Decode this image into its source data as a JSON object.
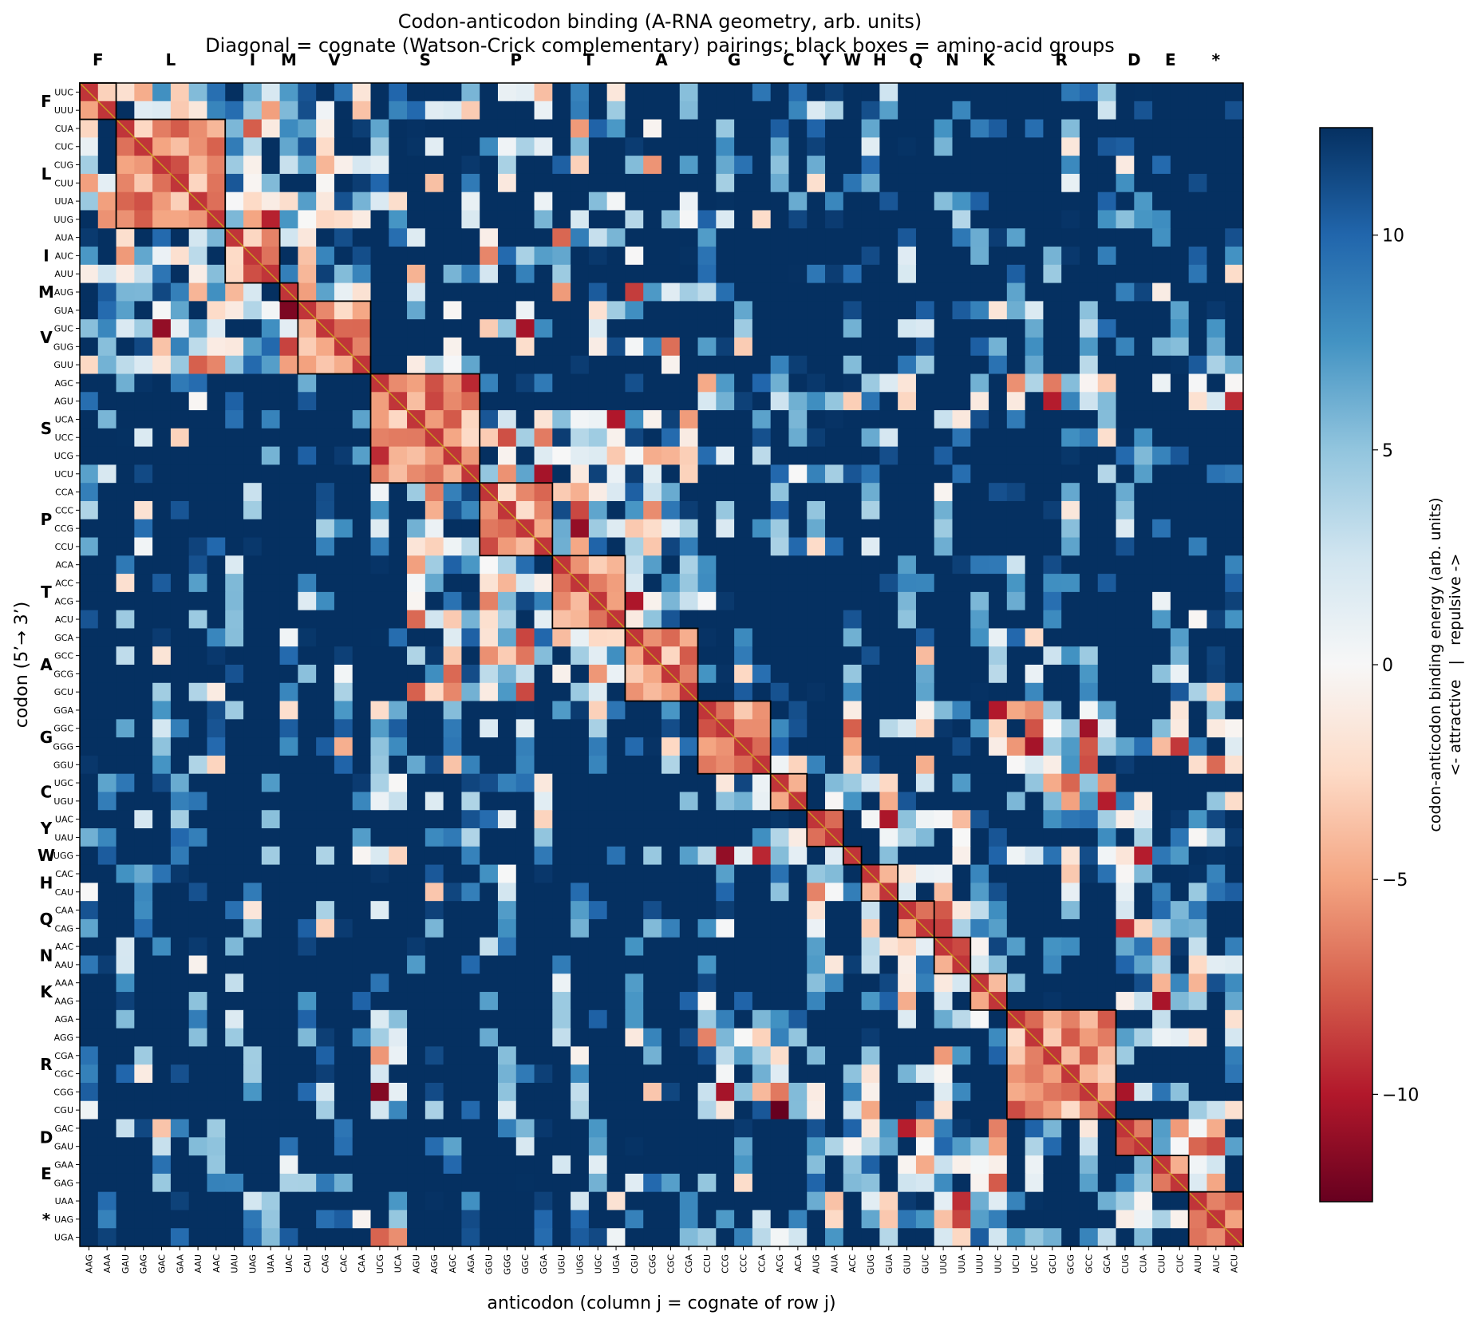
{
  "chart_data": {
    "type": "heatmap",
    "title": "Codon-anticodon binding (A-RNA geometry, arb. units)",
    "subtitle": "Diagonal = cognate (Watson-Crick complementary) pairings; black boxes = amino-acid groups",
    "xlabel": "anticodon (column j = cognate of row j)",
    "ylabel": "codon (5’→ 3’)",
    "colorbar_label_line1": "codon-anticodon binding energy (arb. units)",
    "colorbar_label_line2": "<- attractive   |   repulsive ->",
    "colormap": "RdBu",
    "value_range": [
      -12.5,
      12.5
    ],
    "colorbar_ticks": [
      -10,
      -5,
      0,
      5,
      10
    ],
    "colorbar_tick_labels": [
      "−10",
      "−5",
      "0",
      "5",
      "10"
    ],
    "codons": [
      "UUC",
      "UUU",
      "CUA",
      "CUC",
      "CUG",
      "CUU",
      "UUA",
      "UUG",
      "AUA",
      "AUC",
      "AUU",
      "AUG",
      "GUA",
      "GUC",
      "GUG",
      "GUU",
      "AGC",
      "AGU",
      "UCA",
      "UCC",
      "UCG",
      "UCU",
      "CCA",
      "CCC",
      "CCG",
      "CCU",
      "ACA",
      "ACC",
      "ACG",
      "ACU",
      "GCA",
      "GCC",
      "GCG",
      "GCU",
      "GGA",
      "GGC",
      "GGG",
      "GGU",
      "UGC",
      "UGU",
      "UAC",
      "UAU",
      "UGG",
      "CAC",
      "CAU",
      "CAA",
      "CAG",
      "AAC",
      "AAU",
      "AAA",
      "AAG",
      "AGA",
      "AGG",
      "CGA",
      "CGC",
      "CGG",
      "CGU",
      "GAC",
      "GAU",
      "GAA",
      "GAG",
      "UAA",
      "UAG",
      "UGA"
    ],
    "anticodons": [
      "AAG",
      "AAA",
      "GAU",
      "GAG",
      "GAC",
      "GAA",
      "AAU",
      "AAC",
      "UAU",
      "UAG",
      "UAA",
      "UAC",
      "CAU",
      "CAG",
      "CAC",
      "CAA",
      "UCG",
      "UCA",
      "AGU",
      "AGG",
      "AGC",
      "AGA",
      "GGU",
      "GGG",
      "GGC",
      "GGA",
      "UGU",
      "UGG",
      "UGC",
      "UGA",
      "CGU",
      "CGG",
      "CGC",
      "CGA",
      "CCU",
      "CCG",
      "CCC",
      "CCA",
      "ACG",
      "ACA",
      "AUG",
      "AUA",
      "ACC",
      "GUG",
      "GUA",
      "GUU",
      "GUC",
      "UUG",
      "UUA",
      "UUU",
      "UUC",
      "UCU",
      "UCC",
      "GCU",
      "GCG",
      "GCC",
      "GCA",
      "CUG",
      "CUA",
      "CUU",
      "CUC",
      "AUU",
      "AUC",
      "ACU"
    ],
    "groups": [
      {
        "aa": "F",
        "start": 0,
        "size": 2
      },
      {
        "aa": "L",
        "start": 2,
        "size": 6
      },
      {
        "aa": "I",
        "start": 8,
        "size": 3
      },
      {
        "aa": "M",
        "start": 11,
        "size": 1
      },
      {
        "aa": "V",
        "start": 12,
        "size": 4
      },
      {
        "aa": "S",
        "start": 16,
        "size": 6
      },
      {
        "aa": "P",
        "start": 22,
        "size": 4
      },
      {
        "aa": "T",
        "start": 26,
        "size": 4
      },
      {
        "aa": "A",
        "start": 30,
        "size": 4
      },
      {
        "aa": "G",
        "start": 34,
        "size": 4
      },
      {
        "aa": "C",
        "start": 38,
        "size": 2
      },
      {
        "aa": "Y",
        "start": 40,
        "size": 2
      },
      {
        "aa": "W",
        "start": 42,
        "size": 1
      },
      {
        "aa": "H",
        "start": 43,
        "size": 2
      },
      {
        "aa": "Q",
        "start": 45,
        "size": 2
      },
      {
        "aa": "N",
        "start": 47,
        "size": 2
      },
      {
        "aa": "K",
        "start": 49,
        "size": 2
      },
      {
        "aa": "R",
        "start": 51,
        "size": 6
      },
      {
        "aa": "D",
        "start": 57,
        "size": 2
      },
      {
        "aa": "E",
        "start": 59,
        "size": 2
      },
      {
        "aa": "*",
        "start": 61,
        "size": 3
      }
    ],
    "diagonal_value": -9.0,
    "grid": false
  },
  "colors": {
    "diagonal_line": "#c8a020",
    "group_box": "#000000",
    "saturated_positive": "#053061",
    "saturated_negative": "#67001f"
  }
}
